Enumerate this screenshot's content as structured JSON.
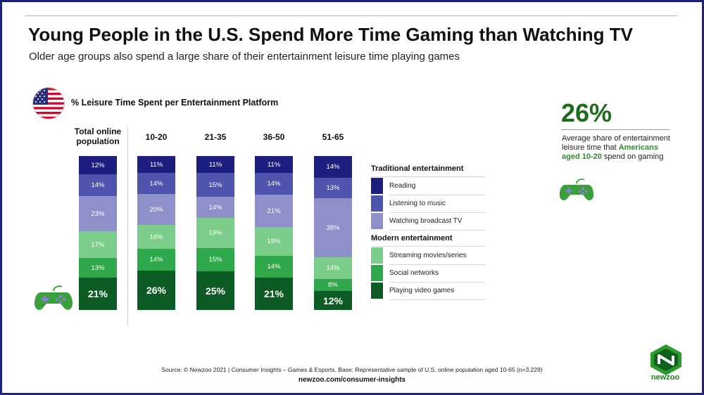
{
  "header": {
    "title": "Young People in the U.S. Spend More Time Gaming than Watching TV",
    "subtitle": "Older age groups also spend a large share of their entertainment leisure time playing games"
  },
  "chart_data": {
    "type": "bar",
    "stacked": true,
    "title": "% Leisure Time Spent per Entertainment Platform",
    "categories": [
      "Total online population",
      "10-20",
      "21-35",
      "36-50",
      "51-65"
    ],
    "series": [
      {
        "name": "Reading",
        "group": "Traditional entertainment",
        "color": "#1c1f80",
        "values": [
          12,
          11,
          11,
          11,
          14
        ]
      },
      {
        "name": "Listening to music",
        "group": "Traditional entertainment",
        "color": "#4f55ad",
        "values": [
          14,
          14,
          15,
          14,
          13
        ]
      },
      {
        "name": "Watching broadcast TV",
        "group": "Traditional entertainment",
        "color": "#8f8fc9",
        "values": [
          23,
          20,
          14,
          21,
          38
        ]
      },
      {
        "name": "Streaming movies/series",
        "group": "Modern entertainment",
        "color": "#7ccd8a",
        "values": [
          17,
          16,
          19,
          19,
          14
        ]
      },
      {
        "name": "Social networks",
        "group": "Modern entertainment",
        "color": "#2fa84b",
        "values": [
          13,
          14,
          15,
          14,
          8
        ]
      },
      {
        "name": "Playing video games",
        "group": "Modern entertainment",
        "color": "#0d5b24",
        "values": [
          21,
          26,
          25,
          21,
          12
        ]
      }
    ],
    "legend_groups": [
      "Traditional entertainment",
      "Modern entertainment"
    ],
    "legend_position": "right"
  },
  "headers": [
    "Total online\npopulation",
    "10-20",
    "21-35",
    "36-50",
    "51-65"
  ],
  "highlight": {
    "value": "26%",
    "text_before": "Average share of entertainment leisure time that ",
    "text_highlight": "Americans aged 10-20",
    "text_after": " spend on gaming"
  },
  "footer": {
    "source": "Source: © Newzoo 2021 | Consumer Insights – Games & Esports. Base: Representative sample of U.S. online population aged 10-65 (n=3,229)",
    "site": "newzoo.com/consumer-insights",
    "logo_text": "newzoo"
  },
  "icons": [
    "us-flag-icon",
    "gamepad-icon",
    "newzoo-logo-icon"
  ]
}
